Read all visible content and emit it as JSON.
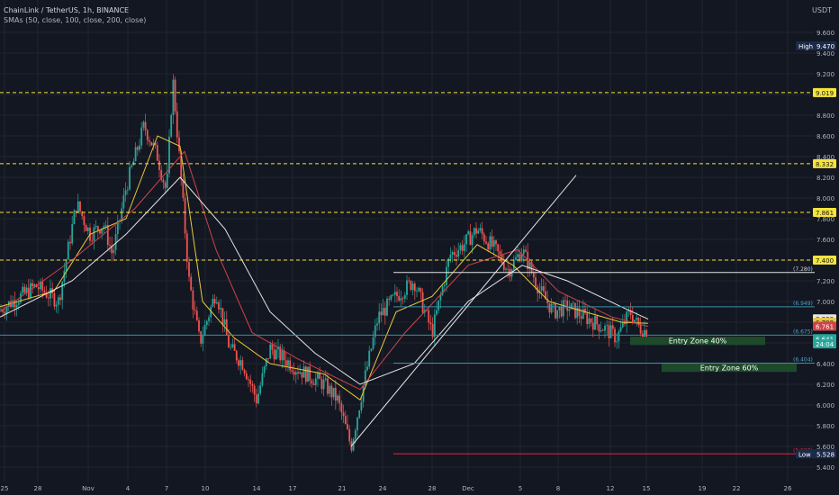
{
  "header": {
    "symbol_line": "ChainLink / TetherUS, 1h, BINANCE",
    "indicator_line": "SMAs (50, close, 100, close, 200, close)",
    "currency": "USDT"
  },
  "colors": {
    "background": "#131722",
    "candle_up": "#26a69a",
    "candle_down": "#ef5350",
    "sma50": "#e9c73a",
    "sma100": "#d0424a",
    "sma200": "#e6e6e6",
    "level_yellow": "#f6e43a",
    "level_cyan": "#3a8fa8",
    "zone_fill": "#1e4a2c"
  },
  "chart_data": {
    "type": "candlestick",
    "title": "ChainLink / TetherUS, 1h, BINANCE",
    "ylim": [
      5.4,
      9.7
    ],
    "y_ticks": [
      5.4,
      5.6,
      5.8,
      6.0,
      6.2,
      6.4,
      6.6,
      6.8,
      7.0,
      7.2,
      7.4,
      7.6,
      7.8,
      8.0,
      8.2,
      8.4,
      8.6,
      8.8,
      9.0,
      9.2,
      9.4,
      9.6
    ],
    "y_tick_labels": [
      "5.400",
      "5.600",
      "5.800",
      "6.000",
      "6.200",
      "6.400",
      "6.600",
      "6.800",
      "7.000",
      "7.200",
      "7.400",
      "7.600",
      "7.800",
      "8.000",
      "8.200",
      "8.400",
      "8.600",
      "8.800",
      "9.000",
      "9.200",
      "9.400",
      "9.600"
    ],
    "x_labels": [
      "25",
      "28",
      "Nov",
      "4",
      "7",
      "10",
      "14",
      "17",
      "21",
      "24",
      "28",
      "Dec",
      "5",
      "8",
      "12",
      "15",
      "19",
      "22",
      "26"
    ],
    "price_path": [
      [
        0,
        6.92
      ],
      [
        40,
        7.15
      ],
      [
        65,
        7.0
      ],
      [
        85,
        7.95
      ],
      [
        100,
        7.65
      ],
      [
        115,
        7.75
      ],
      [
        125,
        7.45
      ],
      [
        140,
        8.1
      ],
      [
        160,
        8.7
      ],
      [
        175,
        8.4
      ],
      [
        185,
        8.05
      ],
      [
        192,
        9.15
      ],
      [
        200,
        8.3
      ],
      [
        210,
        7.2
      ],
      [
        222,
        6.6
      ],
      [
        240,
        7.1
      ],
      [
        255,
        6.55
      ],
      [
        270,
        6.4
      ],
      [
        285,
        6.05
      ],
      [
        300,
        6.55
      ],
      [
        330,
        6.35
      ],
      [
        360,
        6.2
      ],
      [
        375,
        6.05
      ],
      [
        390,
        5.6
      ],
      [
        405,
        6.25
      ],
      [
        420,
        6.85
      ],
      [
        440,
        7.05
      ],
      [
        460,
        7.2
      ],
      [
        480,
        6.7
      ],
      [
        500,
        7.45
      ],
      [
        515,
        7.55
      ],
      [
        530,
        7.7
      ],
      [
        550,
        7.5
      ],
      [
        565,
        7.3
      ],
      [
        580,
        7.5
      ],
      [
        600,
        7.1
      ],
      [
        615,
        6.9
      ],
      [
        630,
        6.95
      ],
      [
        650,
        6.85
      ],
      [
        670,
        6.75
      ],
      [
        685,
        6.65
      ],
      [
        700,
        6.9
      ],
      [
        710,
        6.75
      ],
      [
        720,
        6.7
      ]
    ],
    "series": [
      {
        "name": "SMA 50",
        "color": "#e9c73a",
        "points": [
          [
            0,
            6.95
          ],
          [
            60,
            7.1
          ],
          [
            100,
            7.65
          ],
          [
            140,
            7.8
          ],
          [
            175,
            8.6
          ],
          [
            200,
            8.5
          ],
          [
            225,
            7.0
          ],
          [
            260,
            6.65
          ],
          [
            300,
            6.4
          ],
          [
            360,
            6.3
          ],
          [
            400,
            6.05
          ],
          [
            440,
            6.9
          ],
          [
            480,
            7.05
          ],
          [
            530,
            7.55
          ],
          [
            570,
            7.35
          ],
          [
            610,
            7.0
          ],
          [
            650,
            6.9
          ],
          [
            690,
            6.8
          ],
          [
            720,
            6.79
          ]
        ]
      },
      {
        "name": "SMA 100",
        "color": "#d0424a",
        "points": [
          [
            0,
            6.9
          ],
          [
            80,
            7.4
          ],
          [
            150,
            7.9
          ],
          [
            205,
            8.45
          ],
          [
            240,
            7.5
          ],
          [
            280,
            6.7
          ],
          [
            330,
            6.45
          ],
          [
            400,
            6.15
          ],
          [
            450,
            6.7
          ],
          [
            520,
            7.35
          ],
          [
            575,
            7.5
          ],
          [
            620,
            7.1
          ],
          [
            680,
            6.85
          ],
          [
            720,
            6.76
          ]
        ]
      },
      {
        "name": "SMA 200",
        "color": "#e6e6e6",
        "points": [
          [
            0,
            6.85
          ],
          [
            80,
            7.2
          ],
          [
            140,
            7.65
          ],
          [
            200,
            8.2
          ],
          [
            250,
            7.7
          ],
          [
            300,
            6.9
          ],
          [
            350,
            6.5
          ],
          [
            400,
            6.2
          ],
          [
            460,
            6.4
          ],
          [
            520,
            7.0
          ],
          [
            580,
            7.35
          ],
          [
            630,
            7.2
          ],
          [
            690,
            6.95
          ],
          [
            720,
            6.83
          ]
        ]
      }
    ],
    "levels": [
      {
        "value": 9.019,
        "label": "9.019",
        "style": "dashed-yellow"
      },
      {
        "value": 8.332,
        "label": "8.332",
        "style": "dashed-yellow"
      },
      {
        "value": 7.861,
        "label": "7.861",
        "style": "dashed-yellow"
      },
      {
        "value": 7.4,
        "label": "7.400",
        "style": "dashed-yellow"
      },
      {
        "value": 7.28,
        "label": "(7.280)",
        "style": "white"
      },
      {
        "value": 6.949,
        "label": "(6.949)",
        "style": "cyan"
      },
      {
        "value": 6.675,
        "label": "(6.675)",
        "style": "cyan"
      },
      {
        "value": 6.404,
        "label": "(6.404)",
        "style": "cyan"
      },
      {
        "value": 5.528,
        "label": "(5.528)",
        "style": "red"
      }
    ],
    "zones": [
      {
        "label": "Entry Zone 40%",
        "x_from": 700,
        "x_to": 850,
        "y_from": 6.58,
        "y_to": 6.66
      },
      {
        "label": "Entry Zone 60%",
        "x_from": 735,
        "x_to": 885,
        "y_from": 6.32,
        "y_to": 6.4
      }
    ],
    "trendline": [
      [
        390,
        5.6
      ],
      [
        640,
        8.22
      ]
    ],
    "price_tags": [
      {
        "label": "High",
        "value": "9.470",
        "y": 9.47,
        "bg": "#1c2a4a"
      },
      {
        "label": "",
        "value": "6.833",
        "y": 6.833,
        "bg": "#e6e6e6"
      },
      {
        "label": "",
        "value": "6.799",
        "y": 6.799,
        "bg": "#e9c73a"
      },
      {
        "label": "",
        "value": "6.761",
        "y": 6.761,
        "bg": "#d0424a"
      },
      {
        "label": "",
        "value": "6.641",
        "y": 6.641,
        "bg": "#26a69a"
      },
      {
        "label": "",
        "value": "24:04",
        "y": 6.59,
        "bg": "#26a69a"
      },
      {
        "label": "Low",
        "value": "5.528",
        "y": 5.528,
        "bg": "#1c2a4a"
      }
    ]
  }
}
